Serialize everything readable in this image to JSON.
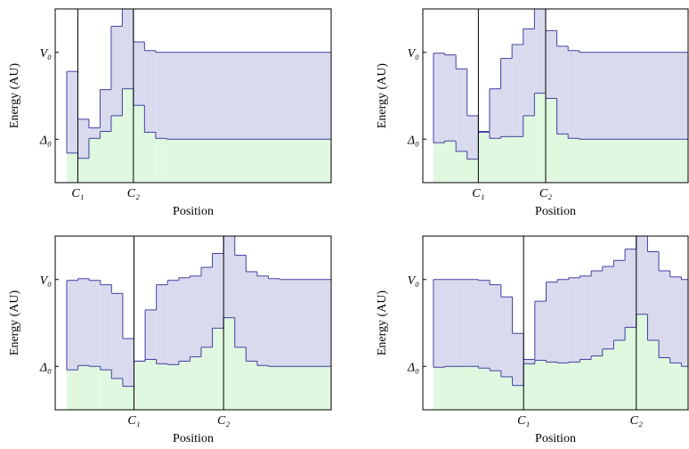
{
  "chart_data": [
    {
      "type": "step",
      "ylabel": "Energy (AU)",
      "xlabel": "Position",
      "x": [
        0,
        1,
        2,
        3,
        4,
        5,
        6,
        7,
        8,
        9
      ],
      "series": [
        {
          "color": "#4040a0",
          "fill": "#dadaef",
          "values": [
            0.78,
            0.23,
            0.13,
            0.57,
            1.3,
            1.5,
            1.12,
            1.02,
            1.0,
            1.0
          ]
        },
        {
          "color": "#4040a0",
          "fill": "#dff8df",
          "values": [
            -0.16,
            -0.22,
            0.01,
            0.09,
            0.27,
            0.58,
            0.39,
            0.08,
            0.01,
            0.0
          ]
        }
      ],
      "xlim": [
        -1.04,
        23.8
      ],
      "ylim": [
        -0.5,
        1.5
      ],
      "xticks": [
        {
          "value": 1,
          "label": "C₁"
        },
        {
          "value": 6,
          "label": "C₂"
        }
      ],
      "yticks": [
        {
          "value": 0,
          "label": "Δ₀"
        },
        {
          "value": 1,
          "label": "V₀"
        }
      ]
    },
    {
      "type": "step",
      "ylabel": "Energy (AU)",
      "xlabel": "Position",
      "x": [
        0,
        1,
        2,
        3,
        4,
        5,
        6,
        7,
        8,
        9,
        10,
        11,
        12,
        13
      ],
      "series": [
        {
          "color": "#4040a0",
          "fill": "#dadaef",
          "values": [
            0.99,
            0.97,
            0.81,
            0.27,
            0.09,
            0.58,
            0.93,
            1.09,
            1.27,
            1.5,
            1.25,
            1.07,
            1.02,
            1.0
          ]
        },
        {
          "color": "#4040a0",
          "fill": "#dff8df",
          "values": [
            -0.04,
            -0.02,
            -0.14,
            -0.23,
            0.08,
            0.01,
            0.03,
            0.03,
            0.27,
            0.53,
            0.47,
            0.06,
            0.01,
            0.0
          ]
        }
      ],
      "xlim": [
        -0.95,
        22.7
      ],
      "ylim": [
        -0.5,
        1.5
      ],
      "xticks": [
        {
          "value": 4,
          "label": "C₁"
        },
        {
          "value": 10,
          "label": "C₂"
        }
      ],
      "yticks": [
        {
          "value": 0,
          "label": "Δ₀"
        },
        {
          "value": 1,
          "label": "V₀"
        }
      ]
    },
    {
      "type": "step",
      "ylabel": "Energy (AU)",
      "xlabel": "Position",
      "x": [
        0,
        1,
        2,
        3,
        4,
        5,
        6,
        7,
        8,
        9,
        10,
        11,
        12,
        13,
        14,
        15,
        16,
        17,
        18,
        19
      ],
      "series": [
        {
          "color": "#4040a0",
          "fill": "#dadaef",
          "values": [
            0.99,
            1.01,
            0.99,
            0.94,
            0.84,
            0.32,
            0.06,
            0.65,
            0.94,
            0.99,
            1.02,
            1.04,
            1.14,
            1.3,
            1.5,
            1.28,
            1.09,
            1.04,
            1.01,
            1.0
          ]
        },
        {
          "color": "#4040a0",
          "fill": "#dff8df",
          "values": [
            -0.04,
            0.01,
            0.0,
            -0.04,
            -0.14,
            -0.23,
            0.06,
            0.08,
            0.03,
            0.02,
            0.06,
            0.11,
            0.22,
            0.44,
            0.56,
            0.22,
            0.06,
            0.01,
            0.0,
            0.0
          ]
        }
      ],
      "xlim": [
        -1.03,
        23.6
      ],
      "ylim": [
        -0.5,
        1.5
      ],
      "xticks": [
        {
          "value": 6,
          "label": "C₁"
        },
        {
          "value": 14,
          "label": "C₂"
        }
      ],
      "yticks": [
        {
          "value": 0,
          "label": "Δ₀"
        },
        {
          "value": 1,
          "label": "V₀"
        }
      ]
    },
    {
      "type": "step",
      "ylabel": "Energy (AU)",
      "xlabel": "Position",
      "x": [
        0,
        1,
        2,
        3,
        4,
        5,
        6,
        7,
        8,
        9,
        10,
        11,
        12,
        13,
        14,
        15,
        16,
        17,
        18,
        19,
        20,
        21,
        22
      ],
      "series": [
        {
          "color": "#4040a0",
          "fill": "#dadaef",
          "values": [
            1.0,
            1.0,
            1.0,
            1.0,
            0.99,
            0.94,
            0.8,
            0.38,
            0.08,
            0.75,
            0.97,
            1.0,
            1.02,
            1.04,
            1.1,
            1.15,
            1.22,
            1.35,
            1.5,
            1.32,
            1.1,
            1.03,
            1.0
          ]
        },
        {
          "color": "#4040a0",
          "fill": "#dff8df",
          "values": [
            -0.01,
            0.0,
            0.0,
            0.0,
            -0.02,
            -0.05,
            -0.12,
            -0.22,
            0.03,
            0.07,
            0.05,
            0.04,
            0.05,
            0.08,
            0.12,
            0.2,
            0.3,
            0.45,
            0.6,
            0.3,
            0.1,
            0.04,
            0.0
          ]
        }
      ],
      "xlim": [
        -0.94,
        22.6
      ],
      "ylim": [
        -0.5,
        1.5
      ],
      "xticks": [
        {
          "value": 8,
          "label": "C₁"
        },
        {
          "value": 18,
          "label": "C₂"
        }
      ],
      "yticks": [
        {
          "value": 0,
          "label": "Δ₀"
        },
        {
          "value": 1,
          "label": "V₀"
        }
      ]
    }
  ]
}
